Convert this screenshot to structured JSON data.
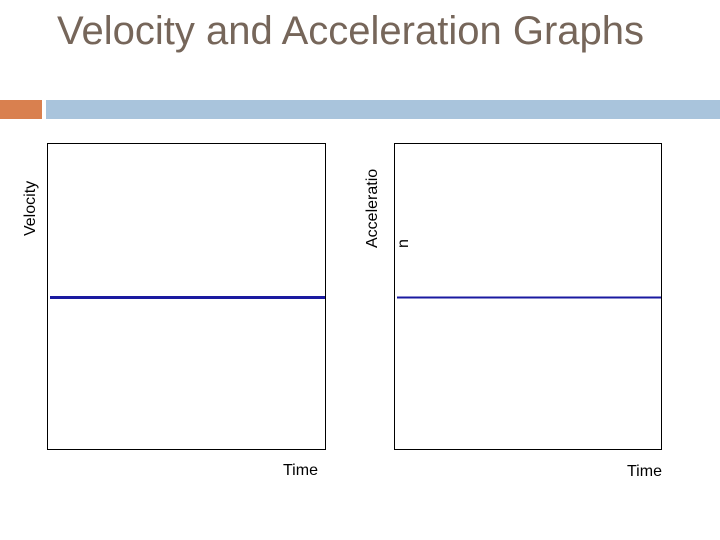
{
  "slide": {
    "title": "Velocity and Acceleration Graphs",
    "accent_color": "#d9804f",
    "bar_color": "#a9c4dc",
    "title_color": "#76665a"
  },
  "chart_data": [
    {
      "type": "line",
      "xlabel": "Time",
      "ylabel": "Velocity",
      "series": [
        {
          "x": [
            0,
            1
          ],
          "y": [
            0,
            0
          ],
          "color": "#1a1aa0"
        }
      ],
      "xlim": [
        0,
        1
      ],
      "ylim": [
        -1,
        1
      ],
      "grid": false
    },
    {
      "type": "line",
      "xlabel": "Time",
      "ylabel_lines": [
        "Acceleratio",
        "n"
      ],
      "series": [
        {
          "x": [
            0,
            1
          ],
          "y": [
            0,
            0
          ],
          "color": "#1a1aa0"
        }
      ],
      "xlim": [
        0,
        1
      ],
      "ylim": [
        -1,
        1
      ],
      "grid": false
    }
  ]
}
